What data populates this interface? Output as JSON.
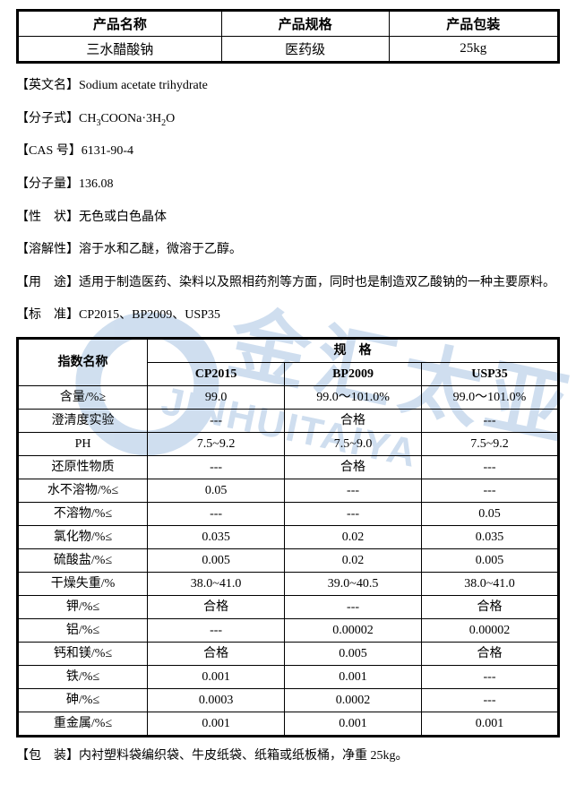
{
  "header_table": {
    "columns": [
      "产品名称",
      "产品规格",
      "产品包装"
    ],
    "row": [
      "三水醋酸钠",
      "医药级",
      "25kg"
    ]
  },
  "properties": [
    {
      "label": "英文名",
      "value": "Sodium acetate trihydrate"
    },
    {
      "label": "分子式",
      "value_html": "CH<sub>3</sub>COONa·3H<sub>2</sub>O"
    },
    {
      "label": "CAS 号",
      "value": "6131-90-4"
    },
    {
      "label": "分子量",
      "value": "136.08"
    },
    {
      "label": "性　状",
      "value": "无色或白色晶体"
    },
    {
      "label": "溶解性",
      "value": "溶于水和乙醚，微溶于乙醇。"
    },
    {
      "label": "用　途",
      "value": "适用于制造医药、染料以及照相药剂等方面，同时也是制造双乙酸钠的一种主要原料。"
    },
    {
      "label": "标　准",
      "value": "CP2015、BP2009、USP35"
    }
  ],
  "spec_table": {
    "name_header": "指数名称",
    "group_header": "规　格",
    "std_headers": [
      "CP2015",
      "BP2009",
      "USP35"
    ],
    "rows": [
      [
        "含量/%≥",
        "99.0",
        "99.0～101.0%",
        "99.0～101.0%"
      ],
      [
        "澄清度实验",
        "---",
        "合格",
        "---"
      ],
      [
        "PH",
        "7.5~9.2",
        "7.5~9.0",
        "7.5~9.2"
      ],
      [
        "还原性物质",
        "---",
        "合格",
        "---"
      ],
      [
        "水不溶物/%≤",
        "0.05",
        "---",
        "---"
      ],
      [
        "不溶物/%≤",
        "---",
        "---",
        "0.05"
      ],
      [
        "氯化物/%≤",
        "0.035",
        "0.02",
        "0.035"
      ],
      [
        "硫酸盐/%≤",
        "0.005",
        "0.02",
        "0.005"
      ],
      [
        "干燥失重/%",
        "38.0~41.0",
        "39.0~40.5",
        "38.0~41.0"
      ],
      [
        "钾/%≤",
        "合格",
        "---",
        "合格"
      ],
      [
        "铝/%≤",
        "---",
        "0.00002",
        "0.00002"
      ],
      [
        "钙和镁/%≤",
        "合格",
        "0.005",
        "合格"
      ],
      [
        "铁/%≤",
        "0.001",
        "0.001",
        "---"
      ],
      [
        "砷/%≤",
        "0.0003",
        "0.0002",
        "---"
      ],
      [
        "重金属/%≤",
        "0.001",
        "0.001",
        "0.001"
      ]
    ]
  },
  "footer": {
    "label": "包　装",
    "value": "内衬塑料袋编织袋、牛皮纸袋、纸箱或纸板桶，净重 25kg。"
  },
  "watermark": {
    "cn": "金汇太亚",
    "en": "JINHUITAIYA",
    "color": "#2a6db8"
  }
}
